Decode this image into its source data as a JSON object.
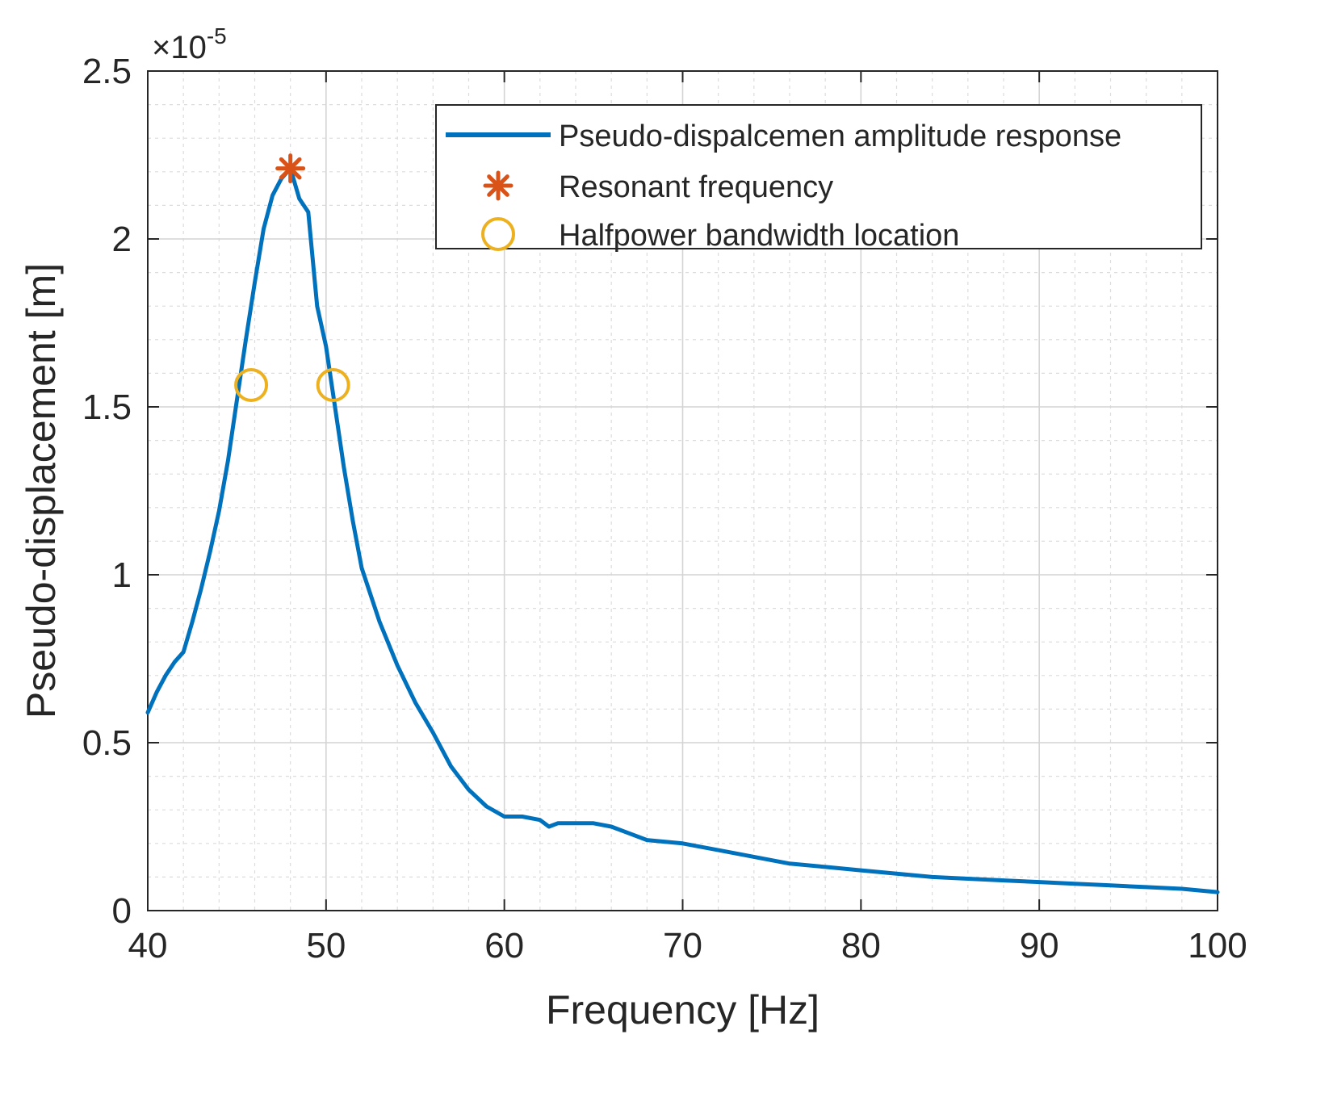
{
  "chart_data": {
    "type": "line",
    "xlabel": "Frequency [Hz]",
    "ylabel": "Pseudo-displacement [m]",
    "y_multiplier_label": {
      "base": "×10",
      "exponent": "-5"
    },
    "xlim": [
      40,
      100
    ],
    "ylim": [
      0,
      2.5
    ],
    "x_ticks": [
      40,
      50,
      60,
      70,
      80,
      90,
      100
    ],
    "x_tick_labels": [
      "40",
      "50",
      "60",
      "70",
      "80",
      "90",
      "100"
    ],
    "y_ticks": [
      0,
      0.5,
      1,
      1.5,
      2,
      2.5
    ],
    "y_tick_labels": [
      "0",
      "0.5",
      "1",
      "1.5",
      "2",
      "2.5"
    ],
    "grid": true,
    "minor_grid": true,
    "legend_position": "top-right",
    "colors": {
      "line": "#0072BD",
      "resonance": "#D95319",
      "halfpower": "#EDB120",
      "axes": "#262626",
      "grid": "#d9d9d9"
    },
    "series": [
      {
        "name": "Pseudo-dispalcemen amplitude response",
        "style": "line",
        "x": [
          40,
          40.5,
          41,
          41.5,
          42,
          42.5,
          43,
          43.5,
          44,
          44.5,
          45,
          45.5,
          46,
          46.5,
          47,
          47.5,
          48,
          48.5,
          49,
          49.5,
          50,
          50.5,
          51,
          51.5,
          52,
          53,
          54,
          55,
          56,
          57,
          58,
          59,
          60,
          61,
          62,
          62.5,
          63,
          64,
          65,
          66,
          67,
          68,
          70,
          72,
          74,
          76,
          78,
          80,
          82,
          84,
          86,
          88,
          90,
          92,
          94,
          96,
          98,
          100
        ],
        "y": [
          0.59,
          0.65,
          0.7,
          0.74,
          0.77,
          0.86,
          0.96,
          1.07,
          1.19,
          1.34,
          1.52,
          1.7,
          1.87,
          2.03,
          2.13,
          2.18,
          2.21,
          2.12,
          2.08,
          1.8,
          1.68,
          1.5,
          1.32,
          1.16,
          1.02,
          0.86,
          0.73,
          0.62,
          0.53,
          0.43,
          0.36,
          0.31,
          0.28,
          0.28,
          0.27,
          0.25,
          0.26,
          0.26,
          0.26,
          0.25,
          0.23,
          0.21,
          0.2,
          0.18,
          0.16,
          0.14,
          0.13,
          0.12,
          0.11,
          0.1,
          0.095,
          0.09,
          0.085,
          0.08,
          0.075,
          0.07,
          0.065,
          0.055
        ]
      },
      {
        "name": "Resonant frequency",
        "style": "marker-star",
        "x": [
          48.0
        ],
        "y": [
          2.21
        ]
      },
      {
        "name": "Halfpower bandwidth location",
        "style": "marker-circle",
        "x": [
          45.8,
          50.4
        ],
        "y": [
          1.565,
          1.565
        ]
      }
    ]
  }
}
